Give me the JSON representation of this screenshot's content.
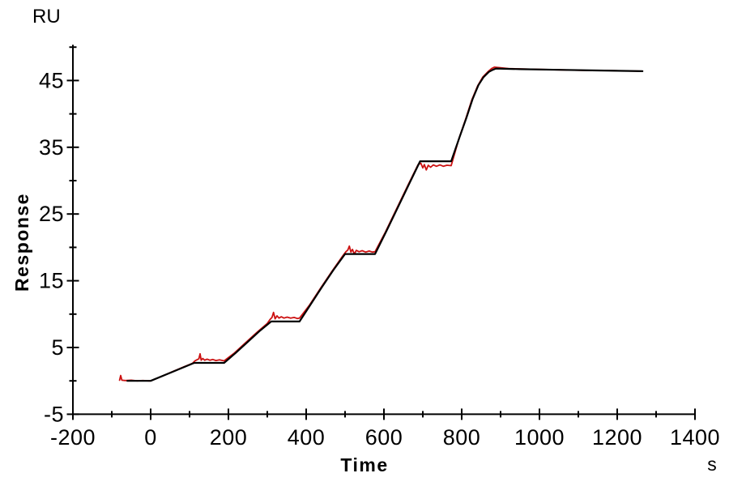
{
  "colors": {
    "background": "#ffffff",
    "axis": "#000000",
    "text": "#000000",
    "fit_line": "#000000",
    "data_line": "#cc1111"
  },
  "chart_data": {
    "type": "line",
    "title": "",
    "xlabel": "Time",
    "x_unit": "s",
    "ylabel": "Response",
    "y_unit": "RU",
    "xlim": [
      -200,
      1400
    ],
    "ylim": [
      -5,
      50
    ],
    "grid": false,
    "legend": "none",
    "x_major_ticks": [
      -200,
      0,
      200,
      400,
      600,
      800,
      1000,
      1200,
      1400
    ],
    "x_minor_ticks": [
      -100,
      100,
      300,
      500,
      700,
      900,
      1100,
      1300
    ],
    "y_major_ticks": [
      -5,
      5,
      15,
      25,
      35,
      45
    ],
    "y_minor_ticks": [
      0,
      10,
      20,
      30,
      40,
      50
    ],
    "description": "Single-cycle kinetics SPR sensorgram: red experimental trace overlaid with black fitted curve; five successive analyte injections give stepwise plateaus before a final long dissociation phase.",
    "plateau_values_ru": [
      0,
      2.7,
      8.9,
      19.0,
      32.9,
      46.7
    ],
    "series": [
      {
        "name": "experimental-data",
        "color": "#cc1111",
        "points": [
          [
            -80,
            0.1
          ],
          [
            -77,
            0.8
          ],
          [
            -74,
            0.1
          ],
          [
            -65,
            0.05
          ],
          [
            -50,
            0.1
          ],
          [
            -35,
            0
          ],
          [
            -20,
            0.05
          ],
          [
            -5,
            0
          ],
          [
            0,
            0
          ],
          [
            25,
            0.6
          ],
          [
            55,
            1.35
          ],
          [
            85,
            2.1
          ],
          [
            108,
            2.65
          ],
          [
            114,
            3.0
          ],
          [
            119,
            3.15
          ],
          [
            124,
            3.3
          ],
          [
            127,
            4.05
          ],
          [
            130,
            3.1
          ],
          [
            134,
            3.35
          ],
          [
            139,
            3.1
          ],
          [
            145,
            3.25
          ],
          [
            152,
            3.1
          ],
          [
            160,
            3.2
          ],
          [
            168,
            3.05
          ],
          [
            177,
            3.15
          ],
          [
            189,
            3.0
          ],
          [
            214,
            4.1
          ],
          [
            244,
            5.7
          ],
          [
            274,
            7.3
          ],
          [
            300,
            8.6
          ],
          [
            307,
            9.2
          ],
          [
            312,
            9.5
          ],
          [
            316,
            10.25
          ],
          [
            320,
            9.3
          ],
          [
            325,
            9.75
          ],
          [
            330,
            9.4
          ],
          [
            336,
            9.6
          ],
          [
            343,
            9.4
          ],
          [
            351,
            9.55
          ],
          [
            360,
            9.4
          ],
          [
            369,
            9.5
          ],
          [
            377,
            9.35
          ],
          [
            383,
            9.4
          ],
          [
            408,
            11.3
          ],
          [
            437,
            13.9
          ],
          [
            466,
            16.4
          ],
          [
            495,
            18.8
          ],
          [
            502,
            19.35
          ],
          [
            507,
            19.6
          ],
          [
            511,
            20.2
          ],
          [
            515,
            19.3
          ],
          [
            519,
            19.7
          ],
          [
            524,
            19.0
          ],
          [
            529,
            19.55
          ],
          [
            536,
            19.35
          ],
          [
            544,
            19.5
          ],
          [
            553,
            19.3
          ],
          [
            562,
            19.45
          ],
          [
            570,
            19.3
          ],
          [
            577,
            19.35
          ],
          [
            602,
            22.1
          ],
          [
            631,
            25.6
          ],
          [
            660,
            29.1
          ],
          [
            688,
            32.4
          ],
          [
            695,
            32.6
          ],
          [
            700,
            31.9
          ],
          [
            704,
            32.4
          ],
          [
            709,
            31.6
          ],
          [
            714,
            32.3
          ],
          [
            720,
            32.0
          ],
          [
            727,
            32.35
          ],
          [
            735,
            32.15
          ],
          [
            744,
            32.35
          ],
          [
            753,
            32.15
          ],
          [
            762,
            32.3
          ],
          [
            773,
            32.25
          ],
          [
            793,
            36.3
          ],
          [
            810,
            39.2
          ],
          [
            826,
            42.1
          ],
          [
            841,
            44.2
          ],
          [
            854,
            45.5
          ],
          [
            867,
            46.3
          ],
          [
            877,
            46.8
          ],
          [
            884,
            47.0
          ],
          [
            900,
            46.9
          ],
          [
            920,
            46.8
          ],
          [
            945,
            46.75
          ],
          [
            975,
            46.7
          ],
          [
            1010,
            46.65
          ],
          [
            1050,
            46.6
          ],
          [
            1090,
            46.55
          ],
          [
            1130,
            46.5
          ],
          [
            1170,
            46.5
          ],
          [
            1210,
            46.45
          ],
          [
            1265,
            46.4
          ]
        ]
      },
      {
        "name": "fitted-curve",
        "color": "#000000",
        "points": [
          [
            -60,
            0
          ],
          [
            0,
            0
          ],
          [
            56,
            1.35
          ],
          [
            112,
            2.7
          ],
          [
            189,
            2.7
          ],
          [
            219,
            4.2
          ],
          [
            249,
            5.8
          ],
          [
            279,
            7.4
          ],
          [
            310,
            8.9
          ],
          [
            383,
            8.9
          ],
          [
            412,
            11.5
          ],
          [
            441,
            14.1
          ],
          [
            470,
            16.6
          ],
          [
            500,
            19.0
          ],
          [
            577,
            19.0
          ],
          [
            606,
            22.4
          ],
          [
            635,
            25.9
          ],
          [
            664,
            29.4
          ],
          [
            693,
            32.9
          ],
          [
            773,
            32.9
          ],
          [
            795,
            36.6
          ],
          [
            812,
            39.4
          ],
          [
            828,
            42.2
          ],
          [
            843,
            44.3
          ],
          [
            856,
            45.5
          ],
          [
            870,
            46.3
          ],
          [
            880,
            46.6
          ],
          [
            888,
            46.8
          ],
          [
            950,
            46.7
          ],
          [
            1050,
            46.6
          ],
          [
            1150,
            46.5
          ],
          [
            1265,
            46.4
          ]
        ]
      }
    ]
  }
}
